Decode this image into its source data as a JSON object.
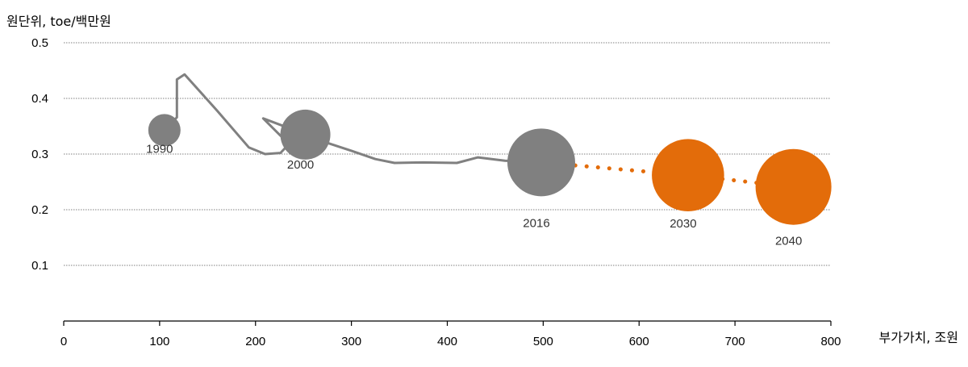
{
  "chart_data": {
    "type": "scatter",
    "ylabel": "원단위, toe/백만원",
    "xlabel": "부가가치, 조원",
    "xlim": [
      0,
      800
    ],
    "ylim": [
      0,
      0.5
    ],
    "x_ticks": [
      "0",
      "100",
      "200",
      "300",
      "400",
      "500",
      "600",
      "700",
      "800"
    ],
    "y_ticks": [
      "0.1",
      "0.2",
      "0.3",
      "0.4",
      "0.5"
    ],
    "grid": "horizontal-dotted",
    "colors": {
      "history": "#808080",
      "projection": "#E36C0A",
      "grid": "#7f7f7f"
    },
    "history_line": [
      [
        105,
        0.343
      ],
      [
        118,
        0.366
      ],
      [
        118,
        0.434
      ],
      [
        126,
        0.443
      ],
      [
        160,
        0.378
      ],
      [
        193,
        0.312
      ],
      [
        210,
        0.3
      ],
      [
        226,
        0.302
      ],
      [
        236,
        0.32
      ],
      [
        226,
        0.333
      ],
      [
        208,
        0.364
      ],
      [
        236,
        0.346
      ],
      [
        252,
        0.335
      ],
      [
        275,
        0.32
      ],
      [
        300,
        0.306
      ],
      [
        325,
        0.291
      ],
      [
        345,
        0.284
      ],
      [
        375,
        0.285
      ],
      [
        410,
        0.284
      ],
      [
        432,
        0.294
      ],
      [
        460,
        0.288
      ],
      [
        498,
        0.285
      ]
    ],
    "projection_line": [
      [
        498,
        0.285
      ],
      [
        651,
        0.262
      ],
      [
        761,
        0.241
      ]
    ],
    "bubbles": [
      {
        "label": "1990",
        "x": 105,
        "y": 0.343,
        "size": 0.1,
        "group": "history"
      },
      {
        "label": "2000",
        "x": 252,
        "y": 0.335,
        "size": 0.24,
        "group": "history"
      },
      {
        "label": "2016",
        "x": 498,
        "y": 0.285,
        "size": 0.44,
        "group": "history"
      },
      {
        "label": "2030",
        "x": 651,
        "y": 0.262,
        "size": 0.5,
        "group": "projection"
      },
      {
        "label": "2040",
        "x": 761,
        "y": 0.241,
        "size": 0.55,
        "group": "projection"
      }
    ]
  }
}
